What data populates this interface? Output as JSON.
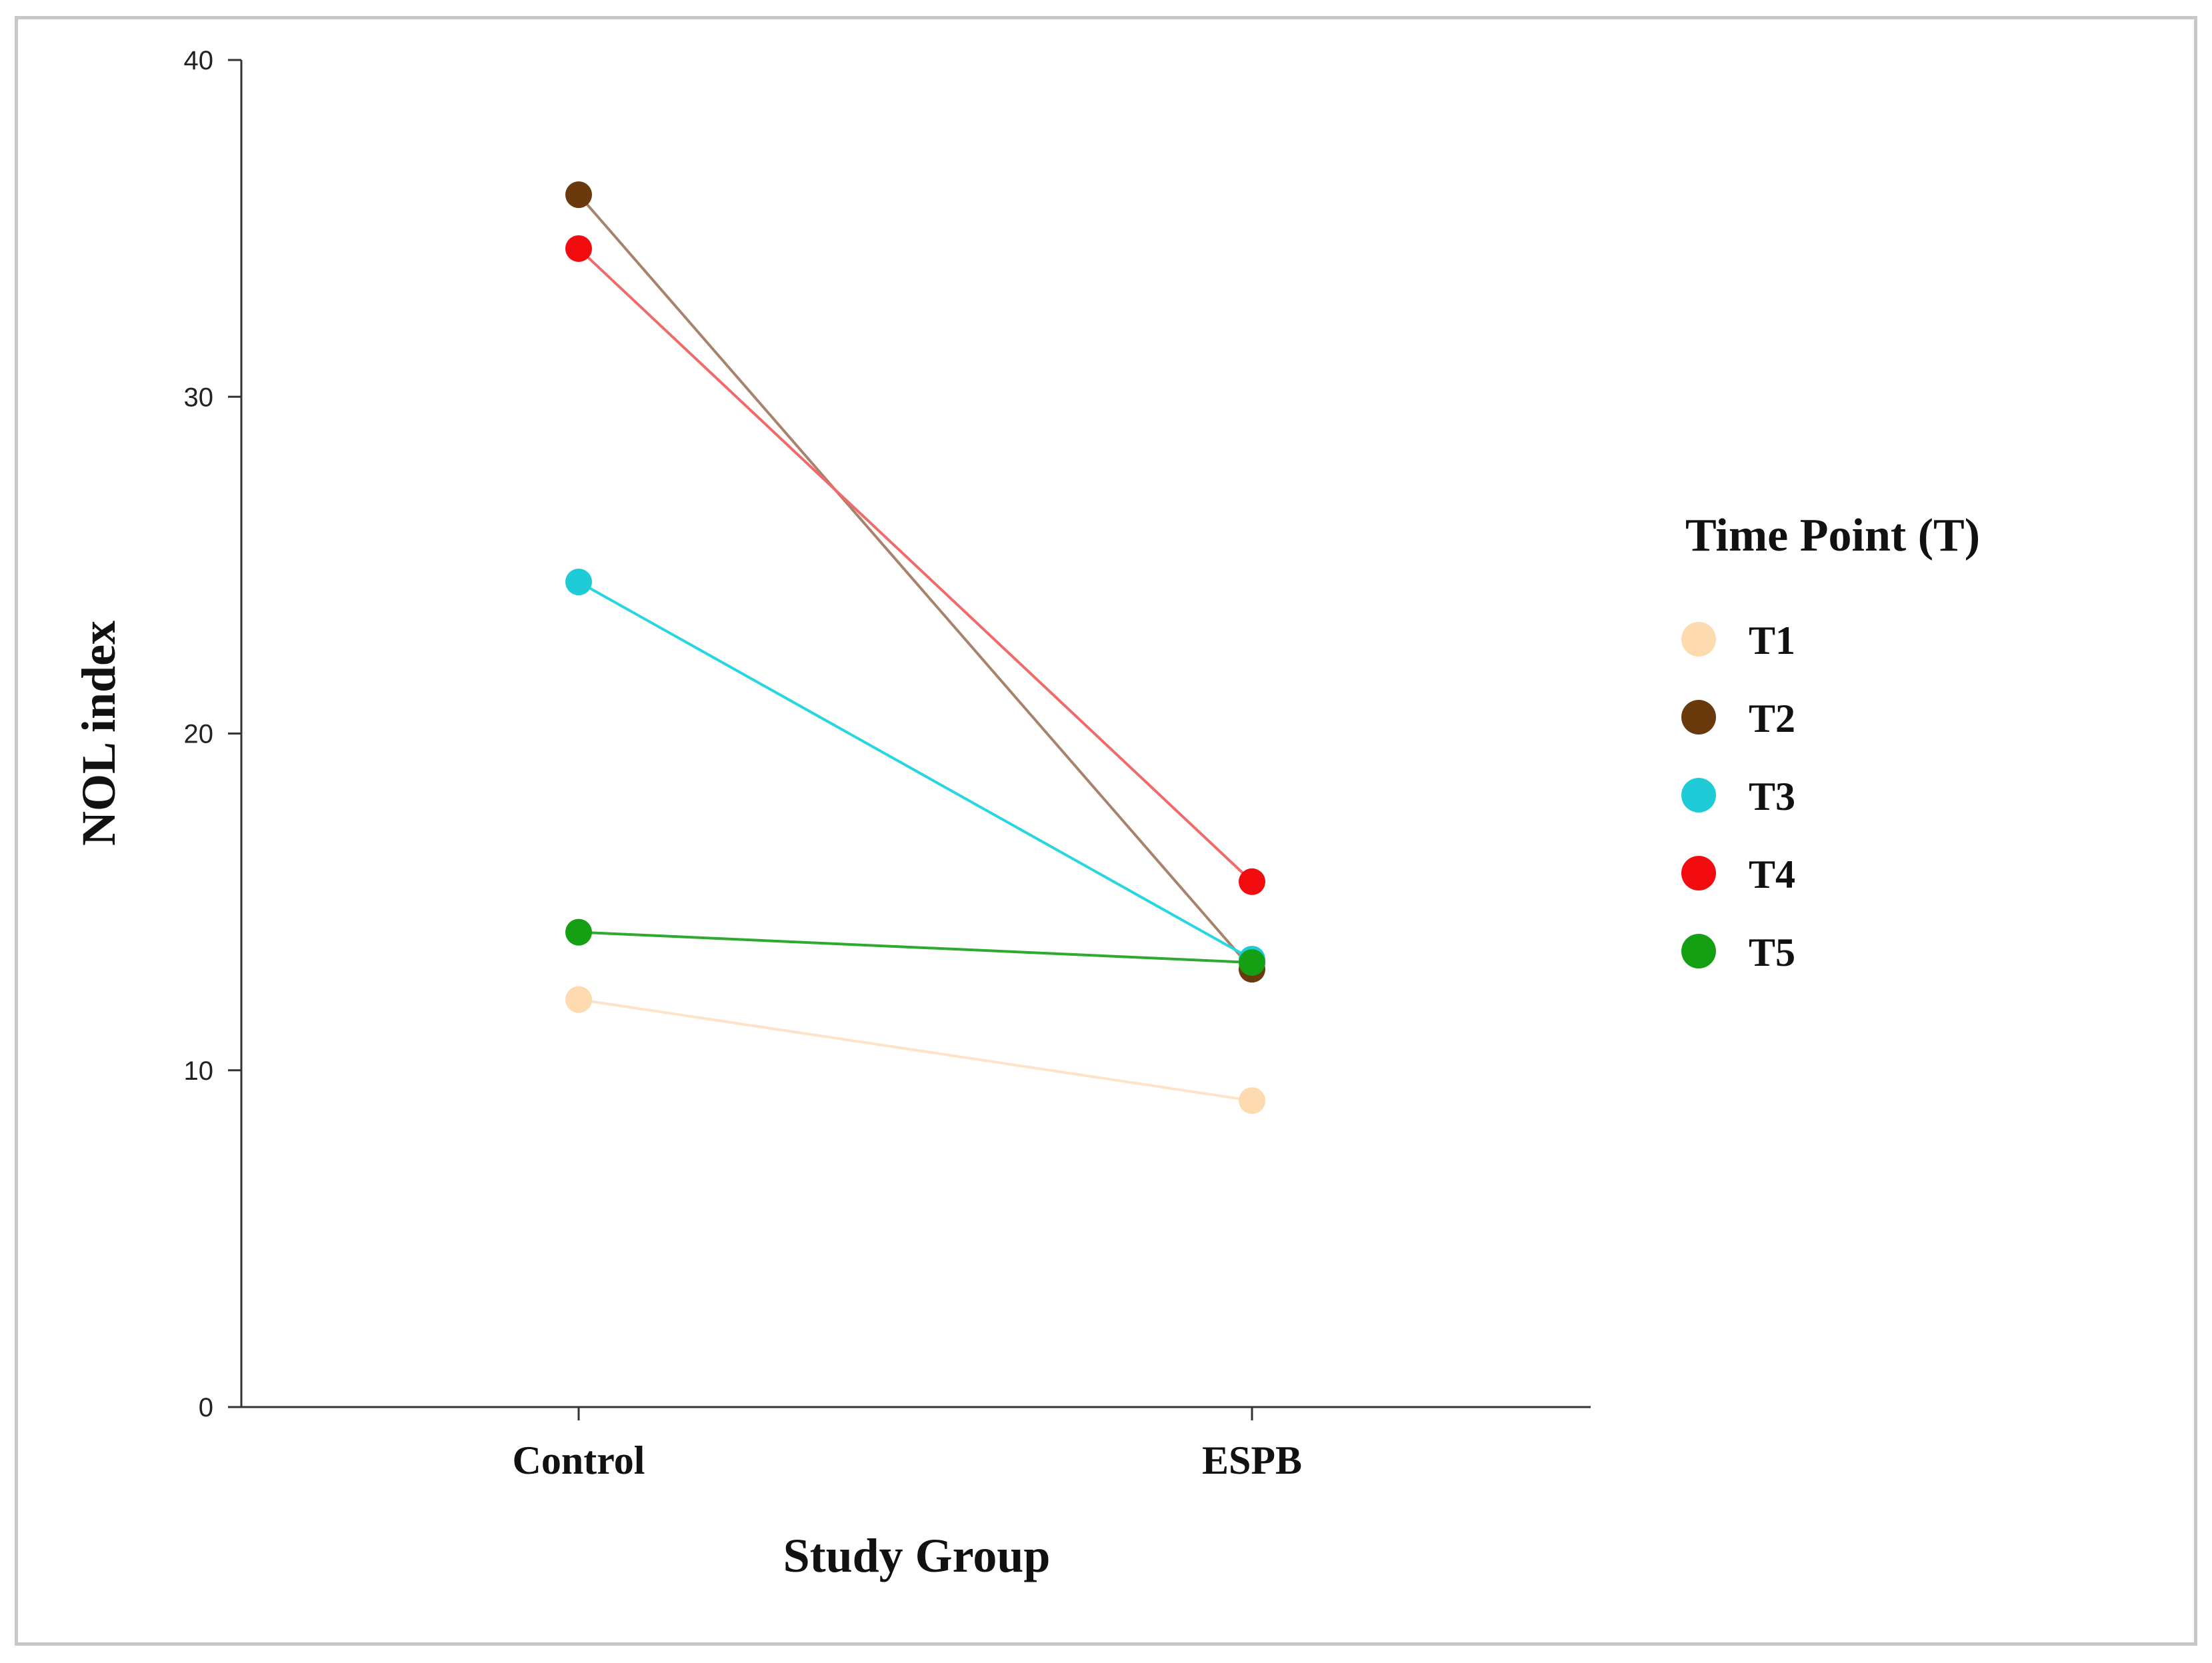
{
  "chart_data": {
    "type": "line",
    "title": "",
    "xlabel": "Study Group",
    "ylabel": "NOL index",
    "categories": [
      "Control",
      "ESPB"
    ],
    "ylim": [
      0,
      40
    ],
    "yticks": [
      0,
      10,
      20,
      30,
      40
    ],
    "grid": false,
    "legend": {
      "title": "Time Point (T)",
      "placement": "right"
    },
    "series": [
      {
        "name": "T1",
        "color": "#FDDAB0",
        "values": [
          12.1,
          9.1
        ]
      },
      {
        "name": "T2",
        "color": "#6B3A0C",
        "values": [
          36.0,
          13.0
        ]
      },
      {
        "name": "T3",
        "color": "#1FCBD7",
        "values": [
          24.5,
          13.3
        ]
      },
      {
        "name": "T4",
        "color": "#F20C10",
        "values": [
          34.4,
          15.6
        ]
      },
      {
        "name": "T5",
        "color": "#14A012",
        "values": [
          14.1,
          13.2
        ]
      }
    ],
    "line_colors": {
      "T1": "#FDE3C8",
      "T2": "#A8826A",
      "T3": "#28D6E2",
      "T4": "#F06A6A",
      "T5": "#2EAA2E"
    }
  }
}
